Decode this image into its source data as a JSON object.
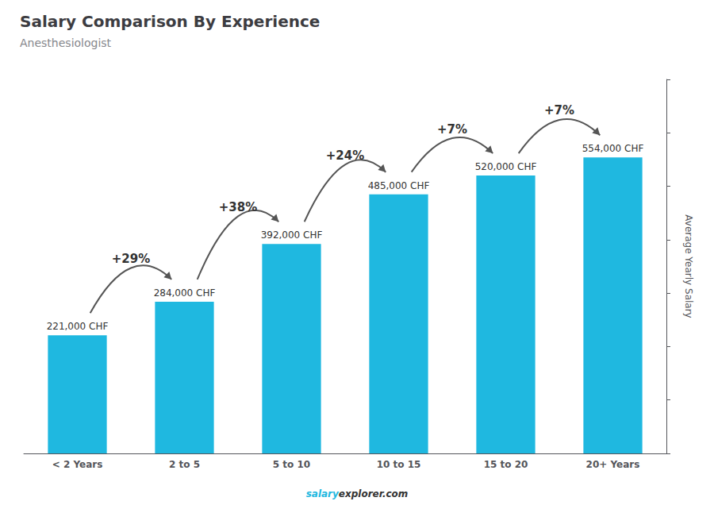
{
  "chart_data": {
    "type": "bar",
    "title": "Salary Comparison By Experience",
    "subtitle": "Anesthesiologist",
    "categories": [
      "< 2 Years",
      "2 to 5",
      "5 to 10",
      "10 to 15",
      "15 to 20",
      "20+ Years"
    ],
    "values": [
      221000,
      284000,
      392000,
      485000,
      520000,
      554000
    ],
    "value_labels": [
      "221,000 CHF",
      "284,000 CHF",
      "392,000 CHF",
      "485,000 CHF",
      "520,000 CHF",
      "554,000 CHF"
    ],
    "data_labels": true,
    "color": "#1fb8e0",
    "ylabel": "Average Yearly Salary",
    "ylim": [
      0,
      700000
    ],
    "yticks": [
      0,
      100000,
      200000,
      300000,
      400000,
      500000,
      600000,
      700000
    ],
    "grid": false,
    "tick_labels": "x",
    "annotations": [
      {
        "text": "+29%",
        "from": "< 2 Years",
        "to": "2 to 5"
      },
      {
        "text": "+38%",
        "from": "2 to 5",
        "to": "5 to 10"
      },
      {
        "text": "+24%",
        "from": "5 to 10",
        "to": "10 to 15"
      },
      {
        "text": "+7%",
        "from": "10 to 15",
        "to": "15 to 20"
      },
      {
        "text": "+7%",
        "from": "15 to 20",
        "to": "20+ Years"
      }
    ],
    "footer": [
      "salary",
      "explorer.com"
    ]
  }
}
